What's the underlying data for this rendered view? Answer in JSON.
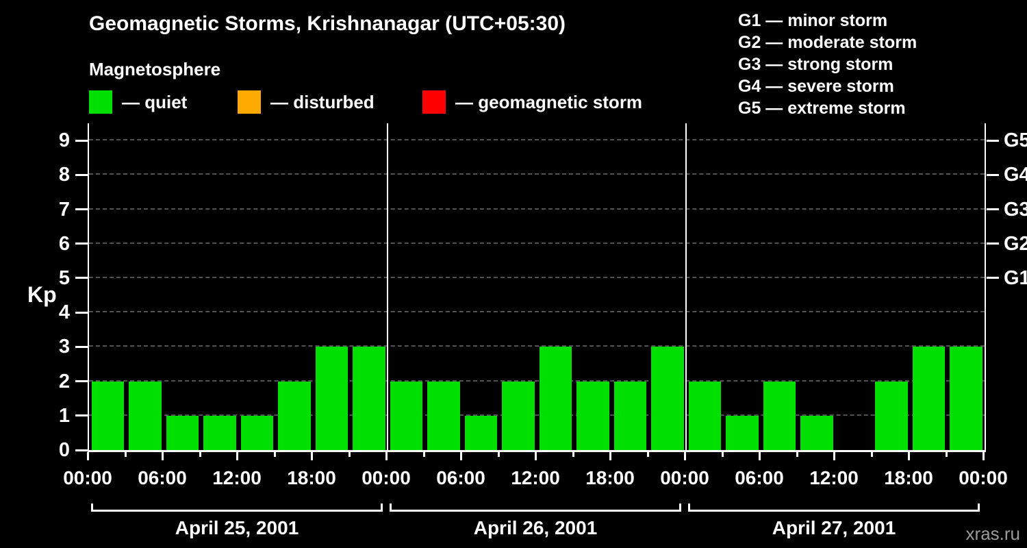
{
  "header": {
    "title": "Geomagnetic Storms, Krishnanagar (UTC+05:30)",
    "subtitle": "Magnetosphere"
  },
  "legend": {
    "items": [
      {
        "name": "quiet",
        "label": "— quiet",
        "color": "#00e000"
      },
      {
        "name": "disturbed",
        "label": "— disturbed",
        "color": "#ffaa00"
      },
      {
        "name": "geomagnetic-storm",
        "label": "— geomagnetic storm",
        "color": "#ff0000"
      }
    ]
  },
  "storm_scale": {
    "items": [
      "G1 — minor storm",
      "G2 — moderate storm",
      "G3 — strong storm",
      "G4 — severe storm",
      "G5 — extreme storm"
    ]
  },
  "chart_data": {
    "type": "bar",
    "title": "Geomagnetic Storms, Krishnanagar (UTC+05:30)",
    "ylabel": "Kp",
    "ylim": [
      0,
      9.5
    ],
    "yticks": [
      0,
      1,
      2,
      3,
      4,
      5,
      6,
      7,
      8,
      9
    ],
    "grid": {
      "horizontal_dashed_at": [
        1,
        2,
        3,
        4,
        5,
        6,
        7,
        8,
        9
      ]
    },
    "right_axis_labels": [
      {
        "label": "G1",
        "kp": 5
      },
      {
        "label": "G2",
        "kp": 6
      },
      {
        "label": "G3",
        "kp": 7
      },
      {
        "label": "G4",
        "kp": 8
      },
      {
        "label": "G5",
        "kp": 9
      }
    ],
    "interval_hours": 3,
    "x_tick_labels": [
      "00:00",
      "06:00",
      "12:00",
      "18:00",
      "00:00",
      "06:00",
      "12:00",
      "18:00",
      "00:00",
      "06:00",
      "12:00",
      "18:00",
      "00:00"
    ],
    "severity_colors": {
      "quiet": "#00e000",
      "disturbed": "#ffaa00",
      "storm": "#ff0000"
    },
    "severity_rule": "kp<=3 quiet, kp=4 disturbed, kp>=5 storm",
    "days": [
      {
        "date": "April 25, 2001",
        "kp_values": [
          2,
          2,
          1,
          1,
          1,
          2,
          3,
          3
        ]
      },
      {
        "date": "April 26, 2001",
        "kp_values": [
          2,
          2,
          1,
          2,
          3,
          2,
          2,
          3
        ]
      },
      {
        "date": "April 27, 2001",
        "kp_values": [
          2,
          1,
          2,
          1,
          0,
          2,
          3,
          3
        ]
      }
    ]
  },
  "watermark": "xras.ru"
}
